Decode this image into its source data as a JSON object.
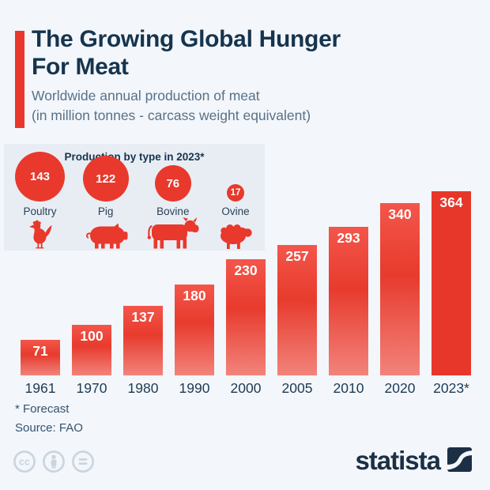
{
  "header": {
    "title_line1": "The Growing Global Hunger",
    "title_line2": "For Meat",
    "subtitle_line1": "Worldwide annual production of meat",
    "subtitle_line2": "(in million tonnes - carcass weight equivalent)"
  },
  "inset": {
    "title": "Production by type in 2023*",
    "items": [
      {
        "label": "Poultry",
        "value": 143,
        "icon": "chicken-icon"
      },
      {
        "label": "Pig",
        "value": 122,
        "icon": "pig-icon"
      },
      {
        "label": "Bovine",
        "value": 76,
        "icon": "cow-icon"
      },
      {
        "label": "Ovine",
        "value": 17,
        "icon": "sheep-icon"
      }
    ]
  },
  "chart_data": {
    "type": "bar",
    "title": "The Growing Global Hunger For Meat",
    "subtitle": "Worldwide annual production of meat (in million tonnes - carcass weight equivalent)",
    "categories": [
      "1961",
      "1970",
      "1980",
      "1990",
      "2000",
      "2005",
      "2010",
      "2020",
      "2023*"
    ],
    "values": [
      71,
      100,
      137,
      180,
      230,
      257,
      293,
      340,
      364
    ],
    "xlabel": "",
    "ylabel": "",
    "ylim": [
      0,
      380
    ],
    "grid": false,
    "legend": "none",
    "bar_color": "#e8392c",
    "forecast_last_bar": true
  },
  "footer": {
    "footnote": "* Forecast",
    "source": "Source: FAO",
    "brand": "statista"
  },
  "colors": {
    "accent_red": "#e8392c",
    "title_navy": "#16344e",
    "background": "#f3f6fa",
    "inset_panel": "#e8edf4"
  }
}
